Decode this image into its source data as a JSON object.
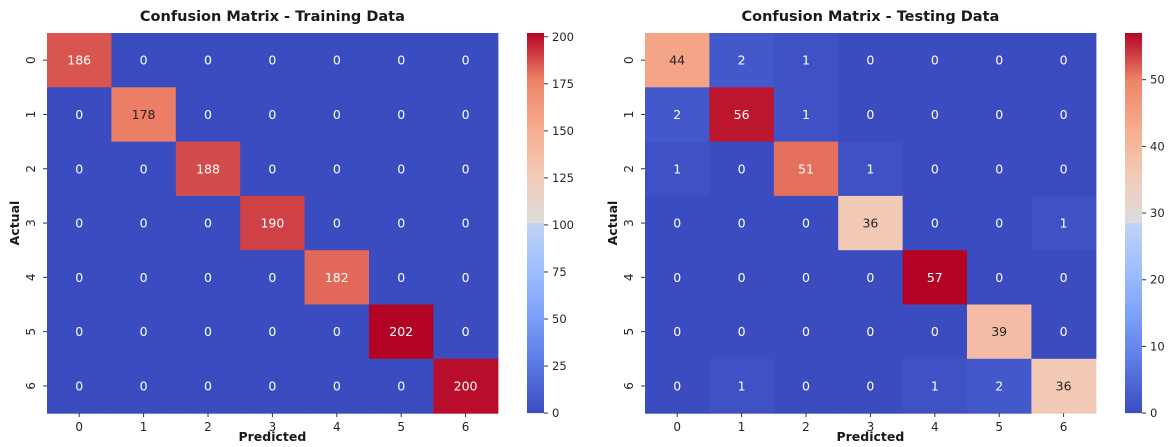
{
  "chart_data": [
    {
      "type": "heatmap",
      "title": "Confusion Matrix - Training Data",
      "xlabel": "Predicted",
      "ylabel": "Actual",
      "x_categories": [
        "0",
        "1",
        "2",
        "3",
        "4",
        "5",
        "6"
      ],
      "y_categories": [
        "0",
        "1",
        "2",
        "3",
        "4",
        "5",
        "6"
      ],
      "values": [
        [
          186,
          0,
          0,
          0,
          0,
          0,
          0
        ],
        [
          0,
          178,
          0,
          0,
          0,
          0,
          0
        ],
        [
          0,
          0,
          188,
          0,
          0,
          0,
          0
        ],
        [
          0,
          0,
          0,
          190,
          0,
          0,
          0
        ],
        [
          0,
          0,
          0,
          0,
          182,
          0,
          0
        ],
        [
          0,
          0,
          0,
          0,
          0,
          202,
          0
        ],
        [
          0,
          0,
          0,
          0,
          0,
          0,
          200
        ]
      ],
      "colormap": "coolwarm",
      "vmin": 0,
      "vmax": 202,
      "colorbar_ticks": [
        0,
        25,
        50,
        75,
        100,
        125,
        150,
        175,
        200
      ]
    },
    {
      "type": "heatmap",
      "title": "Confusion Matrix - Testing Data",
      "xlabel": "Predicted",
      "ylabel": "Actual",
      "x_categories": [
        "0",
        "1",
        "2",
        "3",
        "4",
        "5",
        "6"
      ],
      "y_categories": [
        "0",
        "1",
        "2",
        "3",
        "4",
        "5",
        "6"
      ],
      "values": [
        [
          44,
          2,
          1,
          0,
          0,
          0,
          0
        ],
        [
          2,
          56,
          1,
          0,
          0,
          0,
          0
        ],
        [
          1,
          0,
          51,
          1,
          0,
          0,
          0
        ],
        [
          0,
          0,
          0,
          36,
          0,
          0,
          1
        ],
        [
          0,
          0,
          0,
          0,
          57,
          0,
          0
        ],
        [
          0,
          0,
          0,
          0,
          0,
          39,
          0
        ],
        [
          0,
          1,
          0,
          0,
          1,
          2,
          36
        ]
      ],
      "colormap": "coolwarm",
      "vmin": 0,
      "vmax": 57,
      "colorbar_ticks": [
        0,
        10,
        20,
        30,
        40,
        50
      ]
    }
  ]
}
